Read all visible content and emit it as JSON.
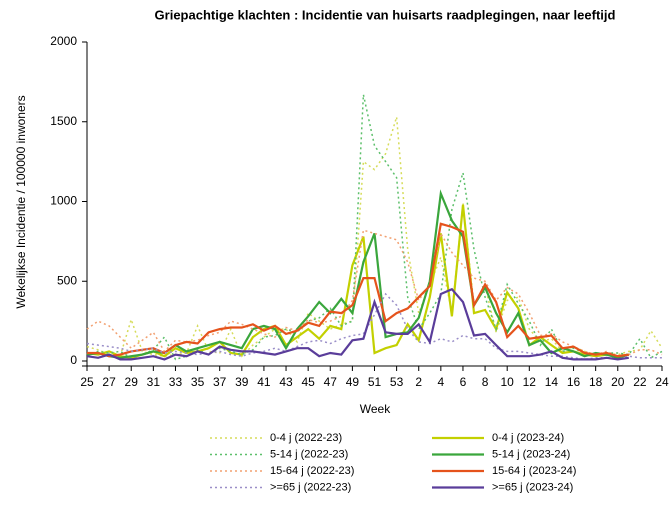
{
  "chart_data": {
    "type": "line",
    "title": "Griepachtige klachten : Incidentie van huisarts raadplegingen, naar leeftijd",
    "x_label": "Week",
    "y_label": "Wekelijkse Incidentie / 100000 inwoners",
    "categories": [
      "25",
      null,
      "27",
      null,
      "29",
      null,
      "31",
      null,
      "33",
      null,
      "35",
      null,
      "37",
      null,
      "39",
      null,
      "41",
      null,
      "43",
      null,
      "45",
      null,
      "47",
      null,
      "49",
      null,
      "51",
      null,
      "53",
      null,
      "2",
      null,
      "4",
      null,
      "6",
      null,
      "8",
      null,
      "10",
      null,
      "12",
      null,
      "14",
      null,
      "16",
      null,
      "18",
      null,
      "20",
      null,
      "22",
      null,
      "24"
    ],
    "ylim": [
      0,
      2000
    ],
    "yticks": [
      0,
      500,
      1000,
      1500,
      2000
    ],
    "series": [
      {
        "name": "0-4 j (2022-23)",
        "color": "#d6dc5a",
        "dashed": true,
        "values": [
          90,
          70,
          40,
          30,
          260,
          60,
          40,
          30,
          40,
          50,
          220,
          60,
          50,
          200,
          30,
          100,
          150,
          200,
          200,
          120,
          300,
          250,
          200,
          230,
          250,
          1250,
          1200,
          1300,
          1530,
          700,
          300,
          480,
          650,
          300,
          990,
          350,
          470,
          180,
          380,
          400,
          200,
          120,
          140,
          60,
          90,
          60,
          40,
          50,
          40,
          60,
          70,
          190,
          80
        ]
      },
      {
        "name": "0-4 j (2023-24)",
        "color": "#c3d000",
        "dashed": false,
        "values": [
          50,
          40,
          60,
          30,
          20,
          40,
          60,
          30,
          80,
          50,
          60,
          80,
          120,
          50,
          40,
          150,
          200,
          220,
          100,
          150,
          200,
          140,
          220,
          200,
          600,
          780,
          50,
          80,
          100,
          230,
          130,
          400,
          800,
          280,
          980,
          300,
          320,
          200,
          430,
          330,
          100,
          150,
          100,
          50,
          60,
          40,
          30,
          40,
          30,
          40,
          null,
          null,
          null
        ]
      },
      {
        "name": "5-14 j (2022-23)",
        "color": "#5cbf6a",
        "dashed": true,
        "values": [
          40,
          60,
          50,
          60,
          20,
          40,
          70,
          150,
          10,
          30,
          70,
          40,
          80,
          60,
          40,
          70,
          150,
          160,
          200,
          180,
          250,
          270,
          330,
          220,
          250,
          1670,
          1350,
          1250,
          1150,
          400,
          200,
          300,
          420,
          950,
          1180,
          700,
          400,
          200,
          480,
          360,
          250,
          100,
          200,
          60,
          80,
          50,
          40,
          50,
          50,
          40,
          140,
          20,
          60
        ]
      },
      {
        "name": "5-14 j (2023-24)",
        "color": "#3aa63c",
        "dashed": false,
        "values": [
          40,
          50,
          30,
          20,
          30,
          40,
          60,
          50,
          100,
          60,
          80,
          100,
          120,
          100,
          80,
          200,
          220,
          200,
          80,
          200,
          280,
          370,
          300,
          390,
          300,
          620,
          800,
          150,
          170,
          180,
          270,
          500,
          1050,
          880,
          780,
          350,
          460,
          300,
          180,
          300,
          100,
          130,
          50,
          80,
          60,
          30,
          50,
          40,
          20,
          40,
          null,
          null,
          null
        ]
      },
      {
        "name": "15-64 j (2022-23)",
        "color": "#f2a070",
        "dashed": true,
        "values": [
          200,
          250,
          220,
          150,
          80,
          130,
          180,
          60,
          130,
          120,
          130,
          160,
          180,
          250,
          230,
          200,
          170,
          150,
          210,
          190,
          260,
          240,
          250,
          280,
          380,
          820,
          800,
          780,
          760,
          620,
          380,
          480,
          800,
          680,
          600,
          520,
          500,
          380,
          460,
          420,
          300,
          160,
          170,
          120,
          90,
          60,
          40,
          60,
          30,
          40,
          70,
          70,
          40
        ]
      },
      {
        "name": "15-64 j (2023-24)",
        "color": "#e5531c",
        "dashed": false,
        "values": [
          50,
          50,
          30,
          40,
          60,
          70,
          80,
          50,
          100,
          120,
          110,
          180,
          200,
          210,
          210,
          230,
          190,
          220,
          170,
          190,
          240,
          220,
          310,
          300,
          350,
          520,
          520,
          250,
          300,
          330,
          400,
          470,
          860,
          840,
          810,
          350,
          480,
          370,
          150,
          220,
          140,
          150,
          160,
          80,
          90,
          50,
          40,
          50,
          30,
          40,
          null,
          null,
          null
        ]
      },
      {
        "name": ">=65 j (2022-23)",
        "color": "#9a8ec8",
        "dashed": true,
        "values": [
          110,
          100,
          90,
          80,
          60,
          70,
          80,
          50,
          60,
          50,
          40,
          50,
          60,
          40,
          30,
          50,
          60,
          80,
          60,
          90,
          120,
          130,
          110,
          140,
          160,
          170,
          290,
          420,
          350,
          200,
          120,
          110,
          140,
          120,
          160,
          140,
          140,
          80,
          60,
          60,
          50,
          40,
          30,
          30,
          20,
          10,
          20,
          20,
          10,
          30,
          20,
          20,
          20
        ]
      },
      {
        "name": ">=65 j (2023-24)",
        "color": "#5a3d9a",
        "dashed": false,
        "values": [
          30,
          20,
          40,
          10,
          10,
          20,
          30,
          10,
          40,
          30,
          60,
          40,
          90,
          70,
          60,
          60,
          50,
          40,
          60,
          80,
          80,
          30,
          50,
          40,
          130,
          140,
          370,
          180,
          170,
          170,
          230,
          120,
          420,
          450,
          370,
          160,
          170,
          100,
          30,
          30,
          30,
          40,
          60,
          20,
          10,
          10,
          10,
          20,
          10,
          20,
          null,
          null,
          null
        ]
      }
    ]
  }
}
